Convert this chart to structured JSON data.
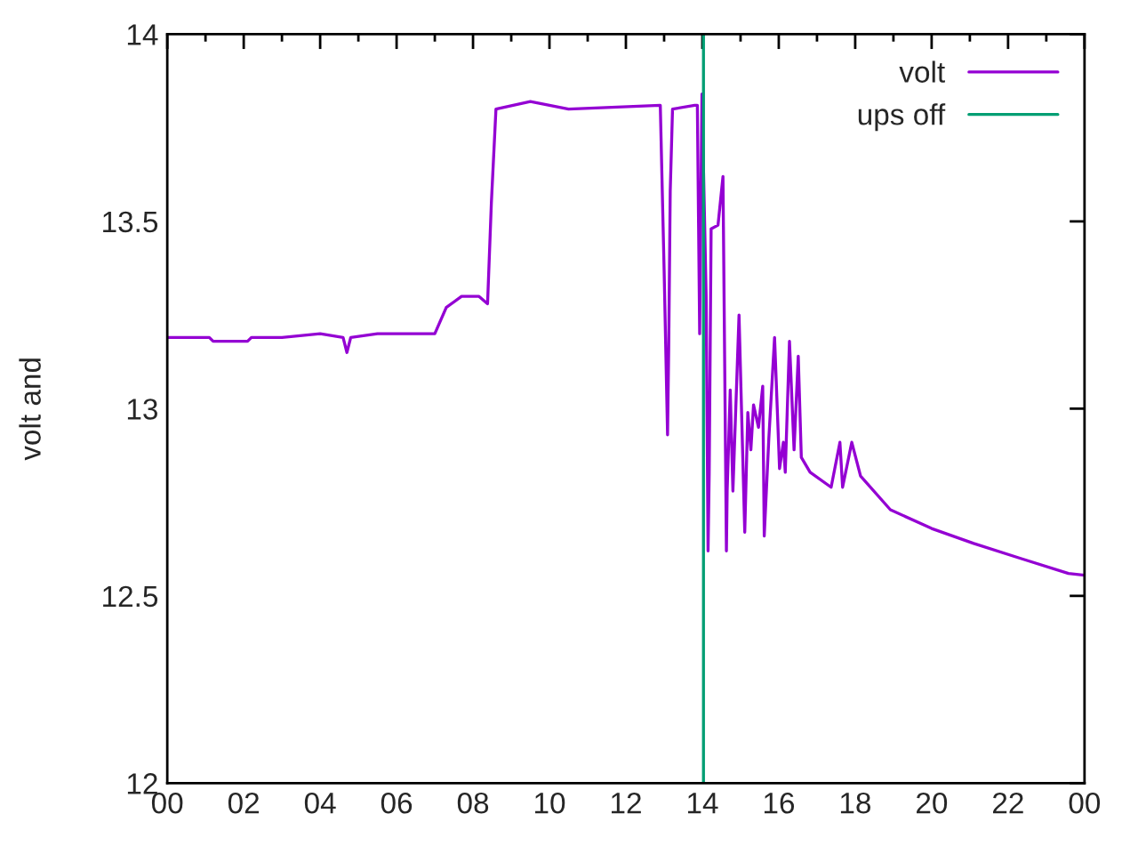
{
  "chart_data": {
    "type": "line",
    "ylabel": "volt and",
    "xlim": [
      0,
      24
    ],
    "ylim": [
      12,
      14
    ],
    "xticks": [
      {
        "value": 0,
        "label": "00"
      },
      {
        "value": 1,
        "label": null
      },
      {
        "value": 2,
        "label": "02"
      },
      {
        "value": 3,
        "label": null
      },
      {
        "value": 4,
        "label": "04"
      },
      {
        "value": 5,
        "label": null
      },
      {
        "value": 6,
        "label": "06"
      },
      {
        "value": 7,
        "label": null
      },
      {
        "value": 8,
        "label": "08"
      },
      {
        "value": 9,
        "label": null
      },
      {
        "value": 10,
        "label": "10"
      },
      {
        "value": 11,
        "label": null
      },
      {
        "value": 12,
        "label": "12"
      },
      {
        "value": 13,
        "label": null
      },
      {
        "value": 14,
        "label": "14"
      },
      {
        "value": 15,
        "label": null
      },
      {
        "value": 16,
        "label": "16"
      },
      {
        "value": 17,
        "label": null
      },
      {
        "value": 18,
        "label": "18"
      },
      {
        "value": 19,
        "label": null
      },
      {
        "value": 20,
        "label": "20"
      },
      {
        "value": 21,
        "label": null
      },
      {
        "value": 22,
        "label": "22"
      },
      {
        "value": 23,
        "label": null
      },
      {
        "value": 24,
        "label": "00"
      }
    ],
    "yticks": [
      12,
      12.5,
      13,
      13.5,
      14
    ],
    "grid": false,
    "legend": "top right",
    "series": [
      {
        "name": "volt",
        "color": "#9400d3",
        "x": [
          0,
          1.1,
          1.2,
          2.1,
          2.2,
          3.0,
          4.0,
          4.6,
          4.7,
          4.8,
          5.5,
          6.5,
          7.0,
          7.3,
          7.7,
          8.15,
          8.38,
          8.48,
          8.6,
          9.5,
          10.5,
          12.9,
          13.0,
          13.09,
          13.12,
          13.16,
          13.22,
          13.8,
          13.87,
          13.93,
          13.99,
          14.1,
          14.15,
          14.18,
          14.23,
          14.41,
          14.54,
          14.63,
          14.65,
          14.73,
          14.8,
          14.96,
          15.11,
          15.19,
          15.27,
          15.34,
          15.47,
          15.58,
          15.62,
          15.74,
          15.89,
          16.02,
          16.12,
          16.17,
          16.28,
          16.4,
          16.51,
          16.59,
          16.82,
          17.37,
          17.6,
          17.67,
          17.91,
          18.14,
          18.92,
          20.0,
          21.1,
          22.33,
          23.58,
          24.0
        ],
        "values": [
          13.19,
          13.19,
          13.18,
          13.18,
          13.19,
          13.19,
          13.2,
          13.19,
          13.15,
          13.19,
          13.2,
          13.2,
          13.2,
          13.27,
          13.3,
          13.3,
          13.28,
          13.55,
          13.8,
          13.82,
          13.8,
          13.81,
          13.37,
          12.93,
          13.16,
          13.58,
          13.8,
          13.81,
          13.81,
          13.2,
          13.84,
          13.3,
          12.62,
          12.83,
          13.48,
          13.49,
          13.62,
          12.62,
          12.78,
          13.05,
          12.78,
          13.25,
          12.67,
          12.99,
          12.89,
          13.01,
          12.95,
          13.06,
          12.66,
          12.92,
          13.19,
          12.84,
          12.91,
          12.83,
          13.18,
          12.89,
          13.14,
          12.87,
          12.83,
          12.79,
          12.91,
          12.79,
          12.91,
          12.82,
          12.73,
          12.68,
          12.64,
          12.6,
          12.56,
          12.555
        ]
      },
      {
        "name": "ups off",
        "color": "#009e73",
        "x": [
          14.03,
          14.03
        ],
        "values": [
          12,
          14
        ]
      }
    ]
  }
}
